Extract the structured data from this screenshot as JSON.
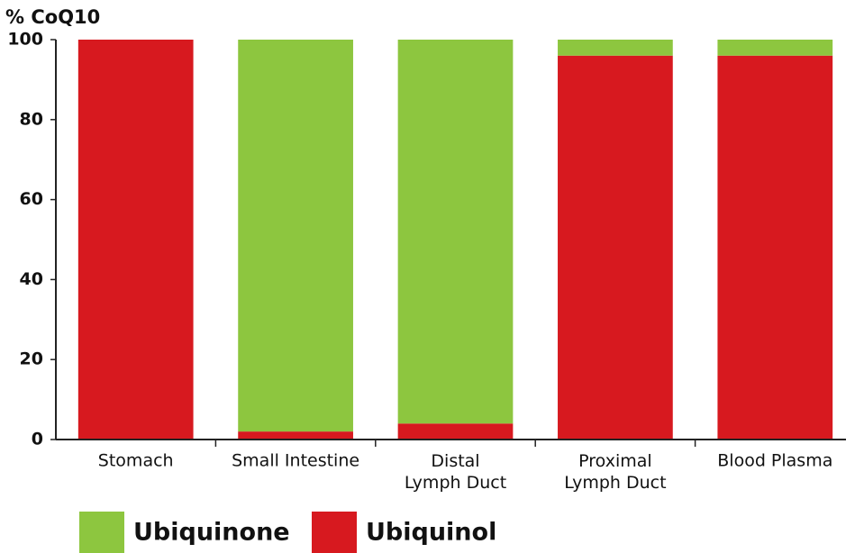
{
  "chart_data": {
    "type": "stacked_bar",
    "title": "% CoQ10",
    "categories": [
      "Stomach",
      "Small Intestine",
      "Distal\nLymph Duct",
      "Proximal\nLymph Duct",
      "Blood Plasma"
    ],
    "series": [
      {
        "name": "Ubiquinone",
        "color": "#8dc63f",
        "values": [
          0,
          98,
          96,
          4,
          4
        ]
      },
      {
        "name": "Ubiquinol",
        "color": "#d7191f",
        "values": [
          100,
          2,
          4,
          96,
          96
        ]
      }
    ],
    "ylim": [
      0,
      100
    ],
    "yticks": [
      0,
      20,
      40,
      60,
      80,
      100
    ],
    "grid": false
  }
}
